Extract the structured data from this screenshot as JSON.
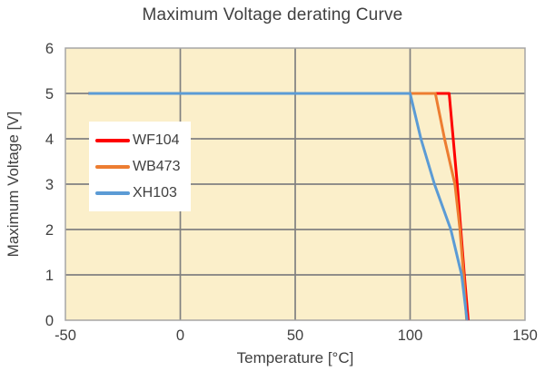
{
  "title": "Maximum Voltage derating Curve",
  "chart_data": {
    "type": "line",
    "title": "Maximum Voltage derating Curve",
    "xlabel": "Temperature [°C]",
    "ylabel": "Maximum Voltage [V]",
    "xlim": [
      -50,
      150
    ],
    "ylim": [
      0,
      6
    ],
    "xticks": [
      -50,
      0,
      50,
      100,
      150
    ],
    "yticks": [
      0,
      1,
      2,
      3,
      4,
      5,
      6
    ],
    "grid": true,
    "legend_position": "upper-left-inside",
    "plot_background": "#FBEFCA",
    "grid_color": "#808080",
    "border_color": "#A6A6A6",
    "text_color": "#404040",
    "line_width": 3,
    "series": [
      {
        "name": "WF104",
        "color": "#FE0000",
        "points": [
          [
            -40,
            5
          ],
          [
            117,
            5
          ],
          [
            120.5,
            3
          ],
          [
            123.6,
            1
          ],
          [
            125.3,
            0
          ]
        ]
      },
      {
        "name": "WB473",
        "color": "#ED7D31",
        "points": [
          [
            -40,
            5
          ],
          [
            111,
            5
          ],
          [
            115,
            4
          ],
          [
            119.5,
            3
          ],
          [
            121.7,
            2
          ],
          [
            123.3,
            1
          ],
          [
            124.6,
            0
          ]
        ]
      },
      {
        "name": "XH103",
        "color": "#5B9BD5",
        "points": [
          [
            -40,
            5
          ],
          [
            100,
            5
          ],
          [
            104.7,
            4
          ],
          [
            110.6,
            3
          ],
          [
            117.7,
            2
          ],
          [
            122.4,
            1
          ],
          [
            124.8,
            0
          ]
        ]
      }
    ]
  }
}
